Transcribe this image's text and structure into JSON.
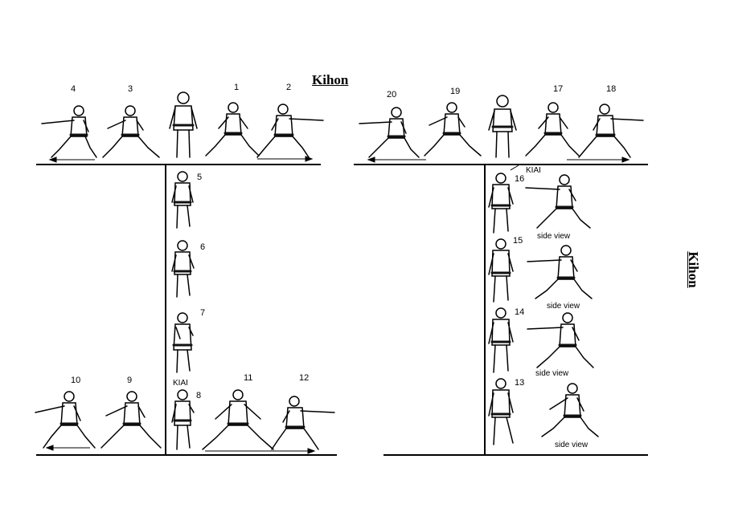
{
  "title": "Kihon",
  "side_title": "Kihon",
  "step_numbers": {
    "n1": "1",
    "n2": "2",
    "n3": "3",
    "n4": "4",
    "n5": "5",
    "n6": "6",
    "n7": "7",
    "n8": "8",
    "n9": "9",
    "n10": "10",
    "n11": "11",
    "n12": "12",
    "n13": "13",
    "n14": "14",
    "n15": "15",
    "n16": "16",
    "n17": "17",
    "n18": "18",
    "n19": "19",
    "n20": "20"
  },
  "labels": {
    "kiai_8": "KIAI",
    "kiai_16": "KIAI",
    "side_view_16": "side view",
    "side_view_15": "side view",
    "side_view_14": "side view",
    "side_view_13": "side view"
  },
  "colors": {
    "ink": "#000000",
    "paper": "#ffffff",
    "belt": "#111111"
  }
}
